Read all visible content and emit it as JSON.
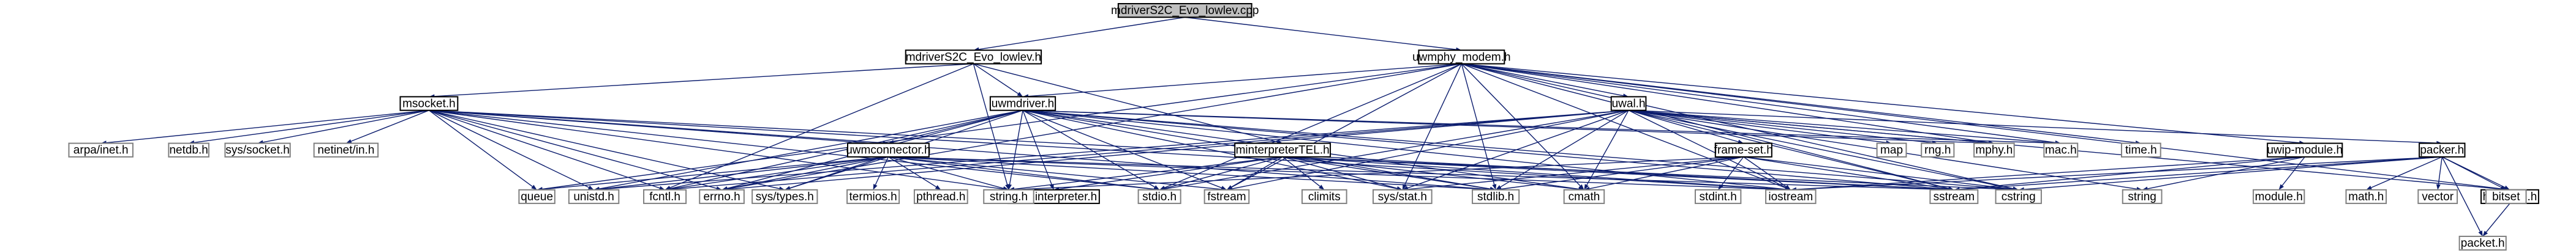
{
  "diagram": {
    "nodes": [
      {
        "id": "root",
        "label": "mdriverS2C_Evo_lowlev.cpp",
        "kind": "root"
      },
      {
        "id": "mdrv",
        "label": "mdriverS2C_Evo_lowlev.h",
        "kind": "boxed"
      },
      {
        "id": "uwmphy",
        "label": "uwmphy_modem.h",
        "kind": "boxed"
      },
      {
        "id": "msocket",
        "label": "msocket.h",
        "kind": "boxed"
      },
      {
        "id": "uwmdriver",
        "label": "uwmdriver.h",
        "kind": "boxed"
      },
      {
        "id": "uwal",
        "label": "uwal.h",
        "kind": "boxed"
      },
      {
        "id": "uwmconnector",
        "label": "uwmconnector.h",
        "kind": "boxed"
      },
      {
        "id": "minterpreterTEL",
        "label": "minterpreterTEL.h",
        "kind": "boxed"
      },
      {
        "id": "frameset",
        "label": "frame-set.h",
        "kind": "boxed"
      },
      {
        "id": "uwipmodule",
        "label": "uwip-module.h",
        "kind": "boxed"
      },
      {
        "id": "packer",
        "label": "packer.h",
        "kind": "boxed"
      },
      {
        "id": "hdruwal",
        "label": "hdr-uwal.h",
        "kind": "boxed"
      },
      {
        "id": "uwminterpreter",
        "label": "uwminterpreter.h",
        "kind": "boxed"
      },
      {
        "id": "arpainet",
        "label": "arpa/inet.h",
        "kind": "sys"
      },
      {
        "id": "netdb",
        "label": "netdb.h",
        "kind": "sys"
      },
      {
        "id": "syssocket",
        "label": "sys/socket.h",
        "kind": "sys"
      },
      {
        "id": "netinetin",
        "label": "netinet/in.h",
        "kind": "sys"
      },
      {
        "id": "queue",
        "label": "queue",
        "kind": "sys"
      },
      {
        "id": "unistd",
        "label": "unistd.h",
        "kind": "sys"
      },
      {
        "id": "fcntl",
        "label": "fcntl.h",
        "kind": "sys"
      },
      {
        "id": "errno",
        "label": "errno.h",
        "kind": "sys"
      },
      {
        "id": "systypes",
        "label": "sys/types.h",
        "kind": "sys"
      },
      {
        "id": "termios",
        "label": "termios.h",
        "kind": "sys"
      },
      {
        "id": "pthread",
        "label": "pthread.h",
        "kind": "sys"
      },
      {
        "id": "stringh",
        "label": "string.h",
        "kind": "sys"
      },
      {
        "id": "stdio",
        "label": "stdio.h",
        "kind": "sys"
      },
      {
        "id": "fstream",
        "label": "fstream",
        "kind": "sys"
      },
      {
        "id": "climits",
        "label": "climits",
        "kind": "sys"
      },
      {
        "id": "sysstat",
        "label": "sys/stat.h",
        "kind": "sys"
      },
      {
        "id": "stdlib",
        "label": "stdlib.h",
        "kind": "sys"
      },
      {
        "id": "cmath",
        "label": "cmath",
        "kind": "sys"
      },
      {
        "id": "stdint",
        "label": "stdint.h",
        "kind": "sys"
      },
      {
        "id": "iostream",
        "label": "iostream",
        "kind": "sys"
      },
      {
        "id": "sstream",
        "label": "sstream",
        "kind": "sys"
      },
      {
        "id": "cstring",
        "label": "cstring",
        "kind": "sys"
      },
      {
        "id": "map",
        "label": "map",
        "kind": "sys"
      },
      {
        "id": "rng",
        "label": "rng.h",
        "kind": "sys"
      },
      {
        "id": "mphy",
        "label": "mphy.h",
        "kind": "sys"
      },
      {
        "id": "mac",
        "label": "mac.h",
        "kind": "sys"
      },
      {
        "id": "time",
        "label": "time.h",
        "kind": "sys"
      },
      {
        "id": "string",
        "label": "string",
        "kind": "sys"
      },
      {
        "id": "module",
        "label": "module.h",
        "kind": "sys"
      },
      {
        "id": "math",
        "label": "math.h",
        "kind": "sys"
      },
      {
        "id": "vector",
        "label": "vector",
        "kind": "sys"
      },
      {
        "id": "bitset",
        "label": "bitset",
        "kind": "sys"
      },
      {
        "id": "packet",
        "label": "packet.h",
        "kind": "sys"
      }
    ],
    "edges": [
      [
        "root",
        "mdrv"
      ],
      [
        "root",
        "uwmphy"
      ],
      [
        "mdrv",
        "msocket"
      ],
      [
        "mdrv",
        "uwmdriver"
      ],
      [
        "mdrv",
        "minterpreterTEL"
      ],
      [
        "mdrv",
        "stringh"
      ],
      [
        "mdrv",
        "fcntl"
      ],
      [
        "uwmphy",
        "uwmdriver"
      ],
      [
        "uwmphy",
        "uwal"
      ],
      [
        "uwmphy",
        "uwipmodule"
      ],
      [
        "uwmphy",
        "hdruwal"
      ],
      [
        "uwmphy",
        "mphy"
      ],
      [
        "uwmphy",
        "mac"
      ],
      [
        "uwmphy",
        "time"
      ],
      [
        "uwmphy",
        "iostream"
      ],
      [
        "uwmphy",
        "sstream"
      ],
      [
        "uwmphy",
        "cstring"
      ],
      [
        "uwmphy",
        "stdlib"
      ],
      [
        "uwmphy",
        "sysstat"
      ],
      [
        "uwmphy",
        "cmath"
      ],
      [
        "uwmphy",
        "stdio"
      ],
      [
        "uwmphy",
        "queue"
      ],
      [
        "uwmphy",
        "errno"
      ],
      [
        "uwmphy",
        "fstream"
      ],
      [
        "msocket",
        "arpainet"
      ],
      [
        "msocket",
        "netdb"
      ],
      [
        "msocket",
        "syssocket"
      ],
      [
        "msocket",
        "netinetin"
      ],
      [
        "msocket",
        "uwmconnector"
      ],
      [
        "msocket",
        "queue"
      ],
      [
        "msocket",
        "unistd"
      ],
      [
        "msocket",
        "fcntl"
      ],
      [
        "msocket",
        "errno"
      ],
      [
        "msocket",
        "systypes"
      ],
      [
        "msocket",
        "stringh"
      ],
      [
        "msocket",
        "stdio"
      ],
      [
        "msocket",
        "sstream"
      ],
      [
        "msocket",
        "iostream"
      ],
      [
        "msocket",
        "stdlib"
      ],
      [
        "uwmdriver",
        "uwmconnector"
      ],
      [
        "uwmdriver",
        "uwminterpreter"
      ],
      [
        "uwmdriver",
        "unistd"
      ],
      [
        "uwmdriver",
        "fcntl"
      ],
      [
        "uwmdriver",
        "errno"
      ],
      [
        "uwmdriver",
        "systypes"
      ],
      [
        "uwmdriver",
        "stringh"
      ],
      [
        "uwmdriver",
        "stdio"
      ],
      [
        "uwmdriver",
        "fstream"
      ],
      [
        "uwmdriver",
        "sysstat"
      ],
      [
        "uwmdriver",
        "stdlib"
      ],
      [
        "uwmdriver",
        "cmath"
      ],
      [
        "uwmdriver",
        "iostream"
      ],
      [
        "uwmdriver",
        "sstream"
      ],
      [
        "uwmdriver",
        "cstring"
      ],
      [
        "uwmdriver",
        "mphy"
      ],
      [
        "uwmdriver",
        "mac"
      ],
      [
        "uwmconnector",
        "unistd"
      ],
      [
        "uwmconnector",
        "fcntl"
      ],
      [
        "uwmconnector",
        "errno"
      ],
      [
        "uwmconnector",
        "systypes"
      ],
      [
        "uwmconnector",
        "termios"
      ],
      [
        "uwmconnector",
        "pthread"
      ],
      [
        "uwmconnector",
        "stringh"
      ],
      [
        "uwmconnector",
        "stdio"
      ],
      [
        "uwmconnector",
        "fstream"
      ],
      [
        "uwmconnector",
        "iostream"
      ],
      [
        "uwmconnector",
        "sstream"
      ],
      [
        "uwmconnector",
        "stdlib"
      ],
      [
        "uwmconnector",
        "queue"
      ],
      [
        "minterpreterTEL",
        "uwminterpreter"
      ],
      [
        "minterpreterTEL",
        "climits"
      ],
      [
        "minterpreterTEL",
        "sysstat"
      ],
      [
        "minterpreterTEL",
        "stdlib"
      ],
      [
        "minterpreterTEL",
        "stringh"
      ],
      [
        "minterpreterTEL",
        "stdio"
      ],
      [
        "minterpreterTEL",
        "fstream"
      ],
      [
        "minterpreterTEL",
        "iostream"
      ],
      [
        "minterpreterTEL",
        "sstream"
      ],
      [
        "minterpreterTEL",
        "cstring"
      ],
      [
        "minterpreterTEL",
        "cmath"
      ],
      [
        "uwal",
        "frameset"
      ],
      [
        "uwal",
        "packer"
      ],
      [
        "uwal",
        "map"
      ],
      [
        "uwal",
        "rng"
      ],
      [
        "uwal",
        "mphy"
      ],
      [
        "uwal",
        "mac"
      ],
      [
        "uwal",
        "iostream"
      ],
      [
        "uwal",
        "sstream"
      ],
      [
        "uwal",
        "cstring"
      ],
      [
        "uwal",
        "stdlib"
      ],
      [
        "uwal",
        "sysstat"
      ],
      [
        "uwal",
        "cmath"
      ],
      [
        "uwal",
        "stdio"
      ],
      [
        "uwal",
        "unistd"
      ],
      [
        "uwal",
        "fcntl"
      ],
      [
        "uwal",
        "errno"
      ],
      [
        "uwal",
        "string"
      ],
      [
        "uwal",
        "hdruwal"
      ],
      [
        "uwal",
        "fstream"
      ],
      [
        "frameset",
        "stdint"
      ],
      [
        "frameset",
        "iostream"
      ],
      [
        "frameset",
        "sstream"
      ],
      [
        "frameset",
        "cstring"
      ],
      [
        "frameset",
        "stdlib"
      ],
      [
        "frameset",
        "sysstat"
      ],
      [
        "frameset",
        "stringh"
      ],
      [
        "frameset",
        "cmath"
      ],
      [
        "uwipmodule",
        "module"
      ],
      [
        "uwipmodule",
        "string"
      ],
      [
        "uwipmodule",
        "sstream"
      ],
      [
        "uwipmodule",
        "iostream"
      ],
      [
        "packer",
        "hdruwal"
      ],
      [
        "packer",
        "math"
      ],
      [
        "packer",
        "vector"
      ],
      [
        "packer",
        "bitset"
      ],
      [
        "packer",
        "packet"
      ],
      [
        "packer",
        "iostream"
      ],
      [
        "packer",
        "sstream"
      ],
      [
        "packer",
        "cstring"
      ],
      [
        "hdruwal",
        "packet"
      ]
    ]
  }
}
